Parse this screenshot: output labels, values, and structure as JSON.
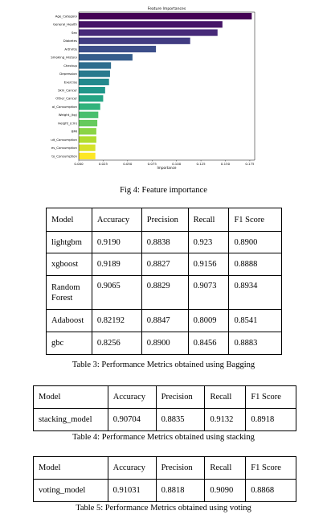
{
  "chart_data": {
    "type": "bar",
    "orientation": "horizontal",
    "title": "Feature Importances",
    "xlabel": "Importance",
    "ylabel": "",
    "xlim": [
      0,
      0.18
    ],
    "xticks": [
      "0.000",
      "0.025",
      "0.050",
      "0.075",
      "0.100",
      "0.125",
      "0.150",
      "0.175"
    ],
    "categories": [
      "Age_Category",
      "General_Health",
      "Sex",
      "Diabetes",
      "Arthritis",
      "Smoking_History",
      "Checkup",
      "Depression",
      "Exercise",
      "Skin_Cancer",
      "Other_Cancer",
      "ol_Consumption",
      "Weight_(kg)",
      "Height_(cm)",
      "BMI",
      "uit_Consumption",
      "es_Consumption",
      "to_Consumption"
    ],
    "values": [
      0.177,
      0.147,
      0.142,
      0.114,
      0.079,
      0.055,
      0.033,
      0.032,
      0.031,
      0.027,
      0.025,
      0.022,
      0.02,
      0.019,
      0.018,
      0.018,
      0.017,
      0.017
    ],
    "palette": "viridis"
  },
  "captions": {
    "fig4": "Fig 4: Feature importance",
    "table3": "Table 3: Performance Metrics obtained using  Bagging",
    "table4": "Table 4: Performance Metrics obtained using stacking",
    "table5": "Table 5: Performance Metrics obtained using voting"
  },
  "table3": {
    "headers": [
      "Model",
      "Accuracy",
      "Precision",
      "Recall",
      "F1 Score"
    ],
    "rows": [
      [
        "lightgbm",
        "0.9190",
        "0.8838",
        "0.923",
        "0.8900"
      ],
      [
        "xgboost",
        "0.9189",
        "0.8827",
        "0.9156",
        "0.8888"
      ],
      [
        "Random Forest",
        "0.9065",
        "0.8829",
        "0.9073",
        "0.8934"
      ],
      [
        "Adaboost",
        "0.82192",
        "0.8847",
        "0.8009",
        "0.8541"
      ],
      [
        "gbc",
        "0.8256",
        "0.8900",
        "0.8456",
        "0.8883"
      ]
    ]
  },
  "table4": {
    "headers": [
      "Model",
      "Accuracy",
      "Precision",
      "Recall",
      "F1 Score"
    ],
    "rows": [
      [
        "stacking_model",
        "0.90704",
        "0.8835",
        "0.9132",
        "0.8918"
      ]
    ]
  },
  "table5": {
    "headers": [
      "Model",
      "Accuracy",
      "Precision",
      "Recall",
      "F1 Score"
    ],
    "rows": [
      [
        "voting_model",
        "0.91031",
        "0.8818",
        "0.9090",
        "0.8868"
      ]
    ]
  }
}
